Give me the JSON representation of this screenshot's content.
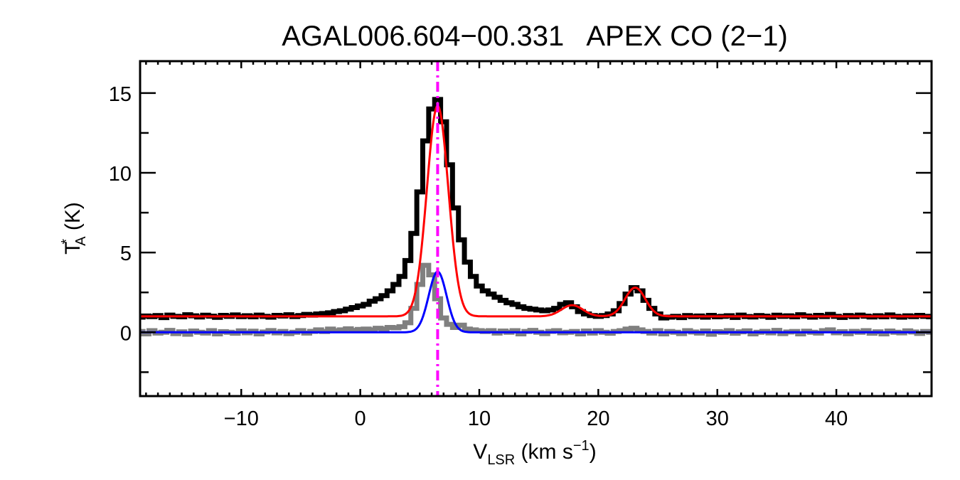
{
  "chart_data": {
    "type": "line",
    "title": "AGAL006.604−00.331   APEX CO (2−1)",
    "xlabel": {
      "main": "V",
      "sub": "LSR",
      "rest": " (km s",
      "sup": "−1",
      "end": ")"
    },
    "ylabel": {
      "main": "T",
      "sup": "*",
      "sub": "A",
      "rest": " (K)"
    },
    "xlim": [
      -18.5,
      48
    ],
    "ylim": [
      -4,
      17
    ],
    "xticks": [
      -10,
      0,
      10,
      20,
      30,
      40
    ],
    "xtick_labels": [
      "−10",
      "0",
      "10",
      "20",
      "30",
      "40"
    ],
    "yticks": [
      0,
      5,
      10,
      15
    ],
    "ytick_labels": [
      "0",
      "5",
      "10",
      "15"
    ],
    "grid": false,
    "reference_velocity": 6.5,
    "colors": {
      "spectrum": "#000000",
      "second_spectrum": "#808080",
      "fit": "#ff0000",
      "second_fit": "#0000ff",
      "reference_line": "#ff00ff"
    },
    "series": [
      {
        "style": "histogram",
        "color": "#000000",
        "x_start": -18.5,
        "x_step": 0.5,
        "values": [
          0.95,
          1.02,
          0.98,
          1.05,
          0.92,
          1.08,
          1.0,
          0.97,
          1.1,
          1.03,
          0.96,
          1.07,
          1.01,
          0.94,
          1.06,
          1.0,
          1.09,
          0.98,
          1.04,
          0.97,
          1.08,
          1.0,
          0.95,
          1.06,
          1.02,
          1.1,
          0.99,
          1.05,
          1.12,
          1.08,
          1.15,
          1.18,
          1.22,
          1.3,
          1.35,
          1.45,
          1.55,
          1.65,
          1.75,
          1.95,
          2.1,
          2.3,
          2.6,
          3.0,
          3.5,
          4.5,
          6.2,
          8.8,
          12.0,
          14.0,
          14.6,
          13.2,
          10.5,
          7.8,
          5.8,
          4.4,
          3.5,
          2.9,
          2.6,
          2.4,
          2.2,
          2.0,
          1.85,
          1.75,
          1.6,
          1.5,
          1.45,
          1.4,
          1.35,
          1.4,
          1.5,
          1.75,
          1.85,
          1.6,
          1.3,
          1.15,
          1.05,
          1.0,
          1.05,
          1.15,
          1.35,
          1.8,
          2.4,
          2.8,
          2.6,
          2.0,
          1.5,
          1.15,
          0.9,
          0.95,
          1.0,
          0.92,
          1.05,
          0.98,
          1.02,
          0.95,
          1.06,
          0.97,
          1.0,
          1.04,
          0.93,
          1.08,
          0.99,
          0.96,
          1.05,
          1.01,
          0.94,
          1.07,
          1.0,
          1.03,
          0.97,
          1.1,
          1.02,
          0.95,
          1.06,
          0.99,
          1.12,
          1.0,
          0.93,
          1.05,
          0.98,
          1.08,
          1.01,
          0.96,
          1.04,
          0.97,
          1.09,
          1.0,
          0.95,
          1.03,
          0.98,
          1.06,
          1.0,
          0.97
        ]
      },
      {
        "style": "histogram",
        "color": "#808080",
        "x_start": -18.5,
        "x_step": 0.5,
        "values": [
          0.05,
          -0.1,
          0.1,
          -0.05,
          0.0,
          0.12,
          -0.08,
          0.03,
          -0.12,
          0.08,
          0.0,
          -0.05,
          0.1,
          -0.1,
          0.04,
          0.0,
          -0.06,
          0.09,
          -0.03,
          0.07,
          -0.1,
          0.02,
          0.11,
          -0.04,
          0.05,
          -0.08,
          0.0,
          0.1,
          -0.05,
          0.06,
          0.15,
          0.05,
          0.2,
          0.1,
          0.15,
          0.22,
          0.12,
          0.18,
          0.2,
          0.15,
          0.25,
          0.2,
          0.3,
          0.28,
          0.35,
          0.6,
          1.5,
          3.0,
          4.2,
          3.6,
          2.1,
          0.9,
          0.5,
          0.3,
          0.45,
          0.2,
          0.15,
          0.1,
          0.05,
          0.1,
          -0.05,
          0.08,
          0.0,
          0.1,
          -0.1,
          0.05,
          0.12,
          0.0,
          -0.08,
          0.06,
          0.1,
          -0.03,
          0.0,
          0.05,
          -0.1,
          0.08,
          -0.05,
          0.1,
          0.0,
          -0.06,
          0.05,
          0.1,
          0.2,
          0.25,
          0.15,
          0.05,
          -0.05,
          0.1,
          -0.1,
          0.05,
          0.0,
          -0.08,
          0.1,
          0.02,
          -0.05,
          0.08,
          -0.12,
          0.04,
          0.0,
          0.1,
          -0.06,
          0.03,
          0.09,
          -0.1,
          0.0,
          0.06,
          -0.04,
          0.12,
          -0.08,
          0.02,
          0.05,
          -0.1,
          0.07,
          0.0,
          -0.05,
          0.1,
          0.15,
          -0.03,
          0.04,
          -0.09,
          0.06,
          0.0,
          0.1,
          -0.06,
          0.03,
          -0.1,
          0.08,
          0.0,
          -0.04,
          0.09,
          0.02,
          -0.07,
          0.05,
          0.0
        ]
      }
    ],
    "fits": [
      {
        "color": "#ff0000",
        "baseline": 1.0,
        "components": [
          {
            "amplitude": 13.2,
            "center": 6.5,
            "sigma": 0.9
          },
          {
            "amplitude": 0.7,
            "center": 17.8,
            "sigma": 0.9
          },
          {
            "amplitude": 1.8,
            "center": 23.1,
            "sigma": 0.85
          }
        ]
      },
      {
        "color": "#0000ff",
        "baseline": 0.0,
        "components": [
          {
            "amplitude": 3.8,
            "center": 6.5,
            "sigma": 0.75
          }
        ]
      }
    ]
  }
}
